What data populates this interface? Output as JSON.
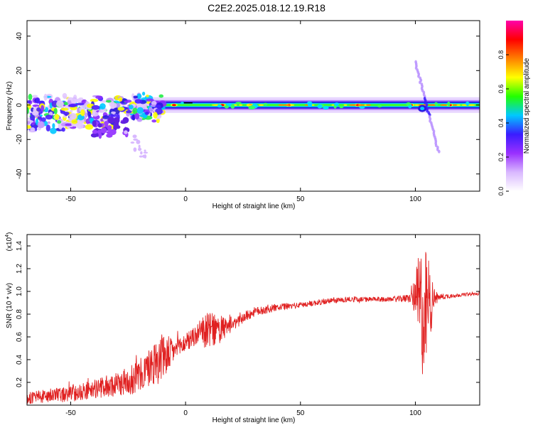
{
  "title": "C2E2.2025.018.12.19.R18",
  "chart_data": [
    {
      "type": "heatmap",
      "xlabel": "Height of straight line (km)",
      "ylabel": "Frequency (Hz)",
      "xlim": [
        -69,
        128
      ],
      "ylim": [
        -50,
        49
      ],
      "xticks": [
        -50,
        0,
        50,
        100
      ],
      "yticks": [
        -40,
        -20,
        0,
        20,
        40
      ],
      "colorbar": {
        "label": "Normalized spectral amplitude",
        "range": [
          0,
          1
        ],
        "ticks": [
          "0.0",
          "0.2",
          "0.4",
          "0.6",
          "0.8"
        ],
        "colors": [
          "#ffffff",
          "#d9b8ff",
          "#9a30ff",
          "#3a1cff",
          "#00c8ff",
          "#22ff00",
          "#ffff00",
          "#ff7f00",
          "#ff0000",
          "#ff00aa"
        ]
      },
      "features": {
        "main_band_center_hz": 0,
        "noisy_region_km": [
          -69,
          -10
        ],
        "noisy_region_freq_hz": [
          -18,
          8
        ],
        "scattered_trail": [
          [
            -25,
            -17
          ],
          [
            -18,
            -30
          ]
        ],
        "chirp_segment": [
          [
            100,
            25
          ],
          [
            110,
            -27
          ]
        ],
        "strong_peaks_km": [
          -5,
          16,
          28,
          45,
          75,
          98,
          115
        ]
      }
    },
    {
      "type": "line",
      "xlabel": "Height of straight line (km)",
      "ylabel": "SNR (10 * v/v)",
      "y_scale_label": "(x10",
      "y_scale_exponent": "4",
      "xlim": [
        -69,
        128
      ],
      "ylim": [
        0,
        1.5
      ],
      "xticks": [
        -50,
        0,
        50,
        100
      ],
      "yticks": [
        0.2,
        0.4,
        0.6,
        0.8,
        1.0,
        1.2,
        1.4
      ],
      "series": [
        {
          "color": "#e02020",
          "x": [
            -69,
            -60,
            -50,
            -40,
            -30,
            -20,
            -15,
            -10,
            -5,
            0,
            5,
            10,
            15,
            20,
            25,
            30,
            40,
            50,
            60,
            70,
            80,
            90,
            98,
            100,
            102,
            104,
            106,
            108,
            110,
            115,
            120,
            128
          ],
          "y": [
            0.06,
            0.08,
            0.1,
            0.14,
            0.18,
            0.25,
            0.35,
            0.42,
            0.48,
            0.55,
            0.62,
            0.66,
            0.66,
            0.7,
            0.77,
            0.82,
            0.86,
            0.88,
            0.91,
            0.93,
            0.93,
            0.93,
            0.94,
            0.96,
            0.85,
            0.8,
            0.9,
            0.93,
            0.95,
            0.96,
            0.97,
            0.98
          ],
          "noise": [
            0.05,
            0.06,
            0.07,
            0.08,
            0.1,
            0.15,
            0.18,
            0.22,
            0.1,
            0.08,
            0.1,
            0.16,
            0.12,
            0.06,
            0.05,
            0.04,
            0.03,
            0.025,
            0.025,
            0.025,
            0.02,
            0.02,
            0.04,
            0.2,
            0.55,
            0.6,
            0.4,
            0.1,
            0.03,
            0.02,
            0.015,
            0.015
          ]
        }
      ]
    }
  ]
}
